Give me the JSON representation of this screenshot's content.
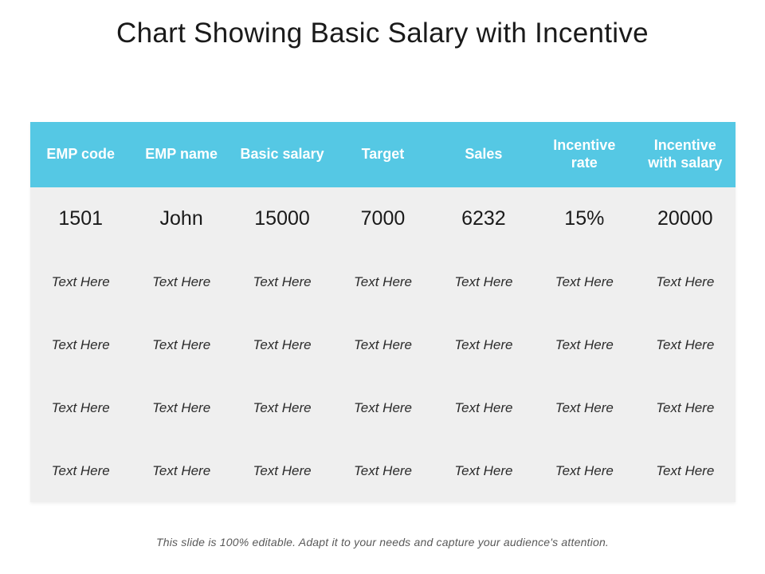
{
  "slide": {
    "title": "Chart Showing Basic Salary with Incentive",
    "footer": "This slide is 100% editable. Adapt it to your needs and capture your audience's attention."
  },
  "colors": {
    "header_bg": "#55C8E4",
    "header_text": "#FFFFFF",
    "body_row_bg": "#EFEFEF",
    "title_text": "#1A1A1A",
    "footer_text": "#595959"
  },
  "chart_data": {
    "type": "table",
    "title": "Chart Showing Basic Salary with Incentive",
    "columns": [
      "EMP code",
      "EMP name",
      "Basic salary",
      "Target",
      "Sales",
      "Incentive rate",
      "Incentive with salary"
    ],
    "rows": [
      [
        "1501",
        "John",
        "15000",
        "7000",
        "6232",
        "15%",
        "20000"
      ],
      [
        "Text Here",
        "Text Here",
        "Text Here",
        "Text Here",
        "Text Here",
        "Text Here",
        "Text Here"
      ],
      [
        "Text Here",
        "Text Here",
        "Text Here",
        "Text Here",
        "Text Here",
        "Text Here",
        "Text Here"
      ],
      [
        "Text Here",
        "Text Here",
        "Text Here",
        "Text Here",
        "Text Here",
        "Text Here",
        "Text Here"
      ],
      [
        "Text Here",
        "Text Here",
        "Text Here",
        "Text Here",
        "Text Here",
        "Text Here",
        "Text Here"
      ]
    ]
  }
}
